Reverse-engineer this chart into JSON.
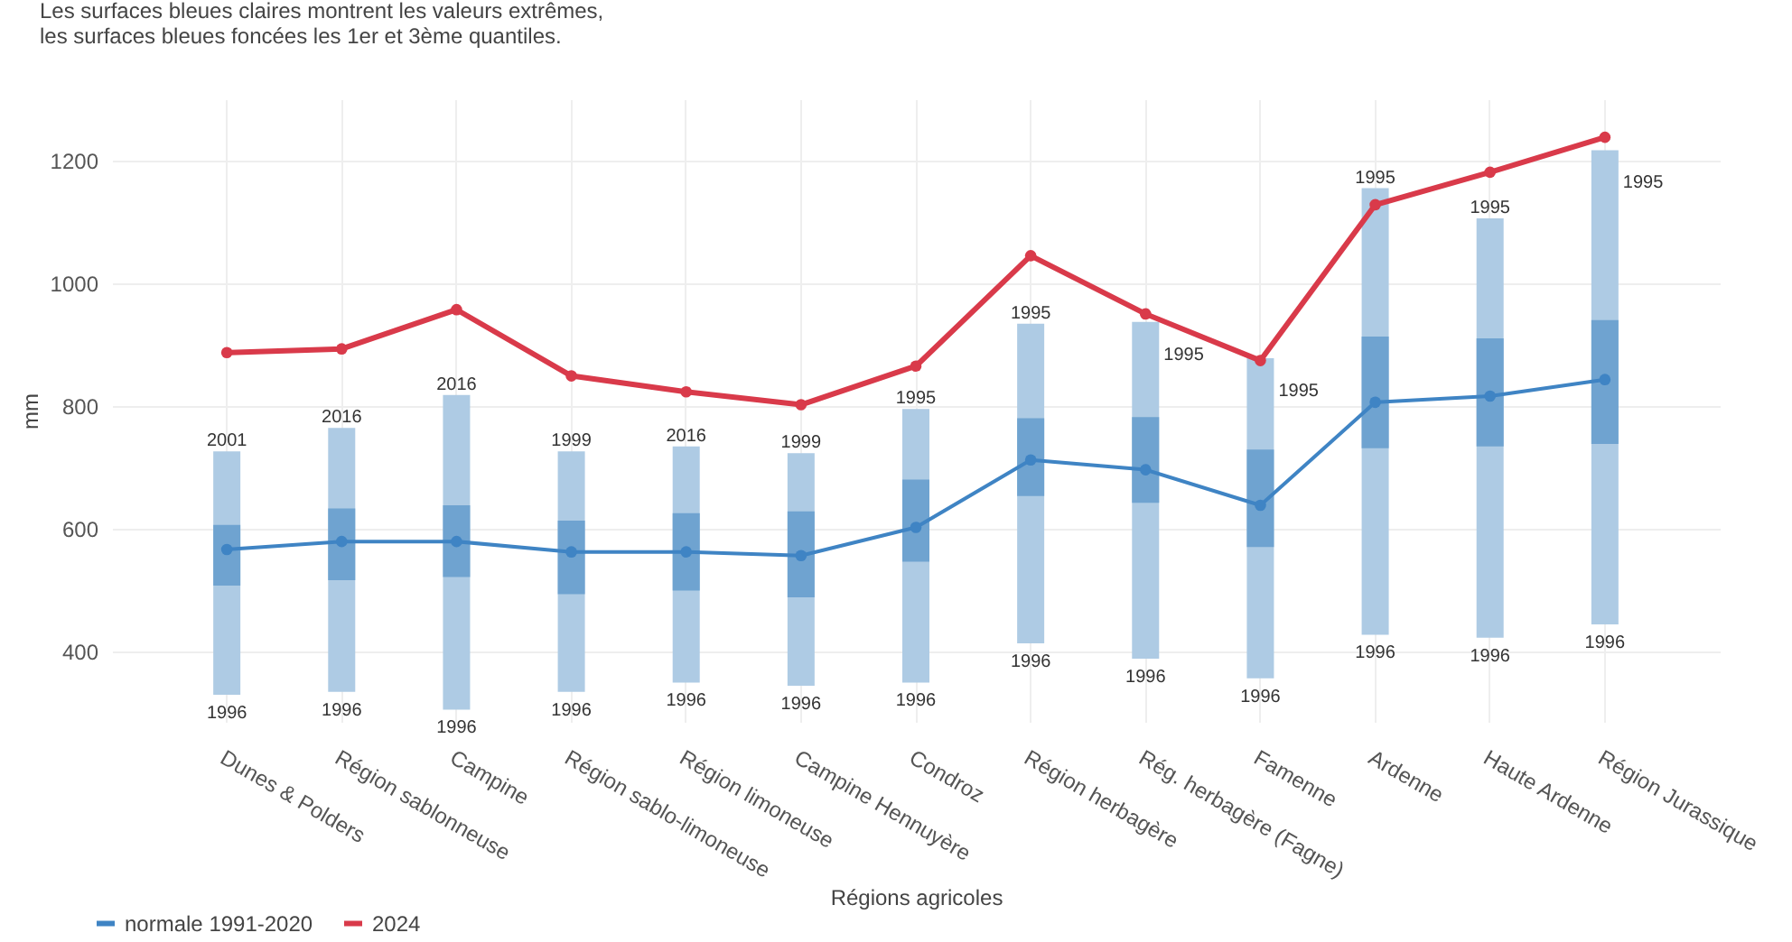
{
  "chart_data": {
    "type": "line",
    "title": "Les surfaces bleues claires montrent les valeurs extrêmes,",
    "subtitle": "les surfaces bleues foncées les 1er et 3ème quantiles.",
    "xlabel": "Régions agricoles",
    "ylabel": "mm",
    "categories": [
      "Dunes & Polders",
      "Région sablonneuse",
      "Campine",
      "Région sablo-limoneuse",
      "Région limoneuse",
      "Campine Hennuyère",
      "Condroz",
      "Région herbagère",
      "Rég. herbagère (Fagne)",
      "Famenne",
      "Ardenne",
      "Haute Ardenne",
      "Région Jurassique"
    ],
    "series": [
      {
        "type": "bar",
        "color": "#aecbe4",
        "base": [
          329,
          334,
          305,
          334,
          349,
          344,
          349,
          413,
          388,
          356,
          427,
          422,
          444
        ],
        "values": [
          397,
          430,
          513,
          392,
          385,
          379,
          446,
          521,
          549,
          522,
          728,
          684,
          773
        ]
      },
      {
        "type": "bar",
        "color": "#6fa3d0",
        "base": [
          507,
          516,
          521,
          493,
          499,
          488,
          546,
          653,
          642,
          570,
          731,
          734,
          738
        ],
        "values": [
          99,
          117,
          117,
          120,
          126,
          140,
          134,
          127,
          140,
          159,
          182,
          176,
          202
        ]
      },
      {
        "name": "normale 1991-2020",
        "color": "#3f84c4",
        "values": [
          566,
          579,
          579,
          562,
          562,
          556,
          602,
          712,
          696,
          638,
          806,
          816,
          843
        ]
      },
      {
        "name": "2024",
        "color": "#d93a4a",
        "values": [
          887,
          893,
          957,
          849,
          823,
          802,
          865,
          1045,
          950,
          874,
          1128,
          1181,
          1238
        ]
      }
    ],
    "annotations": [
      {
        "text": "2001",
        "x": "Dunes & Polders",
        "y": 726
      },
      {
        "text": "1996",
        "x": "Dunes & Polders",
        "y": 329
      },
      {
        "text": "2016",
        "x": "Région sablonneuse",
        "y": 764
      },
      {
        "text": "1996",
        "x": "Région sablonneuse",
        "y": 334
      },
      {
        "text": "2016",
        "x": "Campine",
        "y": 818
      },
      {
        "text": "1996",
        "x": "Campine",
        "y": 305
      },
      {
        "text": "1999",
        "x": "Région sablo-limoneuse",
        "y": 726
      },
      {
        "text": "1996",
        "x": "Région sablo-limoneuse",
        "y": 334
      },
      {
        "text": "2016",
        "x": "Région limoneuse",
        "y": 734
      },
      {
        "text": "1996",
        "x": "Région limoneuse",
        "y": 349
      },
      {
        "text": "1999",
        "x": "Campine Hennuyère",
        "y": 723
      },
      {
        "text": "1996",
        "x": "Campine Hennuyère",
        "y": 344
      },
      {
        "text": "1995",
        "x": "Condroz",
        "y": 795
      },
      {
        "text": "1996",
        "x": "Condroz",
        "y": 349
      },
      {
        "text": "1995",
        "x": "Région herbagère",
        "y": 934
      },
      {
        "text": "1996",
        "x": "Région herbagère",
        "y": 413
      },
      {
        "text": "1995",
        "x": "Rég. herbagère (Fagne)",
        "y": 937
      },
      {
        "text": "1996",
        "x": "Rég. herbagère (Fagne)",
        "y": 388
      },
      {
        "text": "1995",
        "x": "Famenne",
        "y": 878
      },
      {
        "text": "1996",
        "x": "Famenne",
        "y": 356
      },
      {
        "text": "1995",
        "x": "Ardenne",
        "y": 1155
      },
      {
        "text": "1996",
        "x": "Ardenne",
        "y": 427
      },
      {
        "text": "1995",
        "x": "Haute Ardenne",
        "y": 1106
      },
      {
        "text": "1996",
        "x": "Haute Ardenne",
        "y": 422
      },
      {
        "text": "1995",
        "x": "Région Jurassique",
        "y": 1217
      },
      {
        "text": "1996",
        "x": "Région Jurassique",
        "y": 444
      }
    ],
    "ylim": [
      285,
      1300
    ],
    "yticks": [
      400,
      600,
      800,
      1000,
      1200
    ],
    "grid": true,
    "legend": "bottom",
    "marker": "circle",
    "line_style": "solid"
  }
}
